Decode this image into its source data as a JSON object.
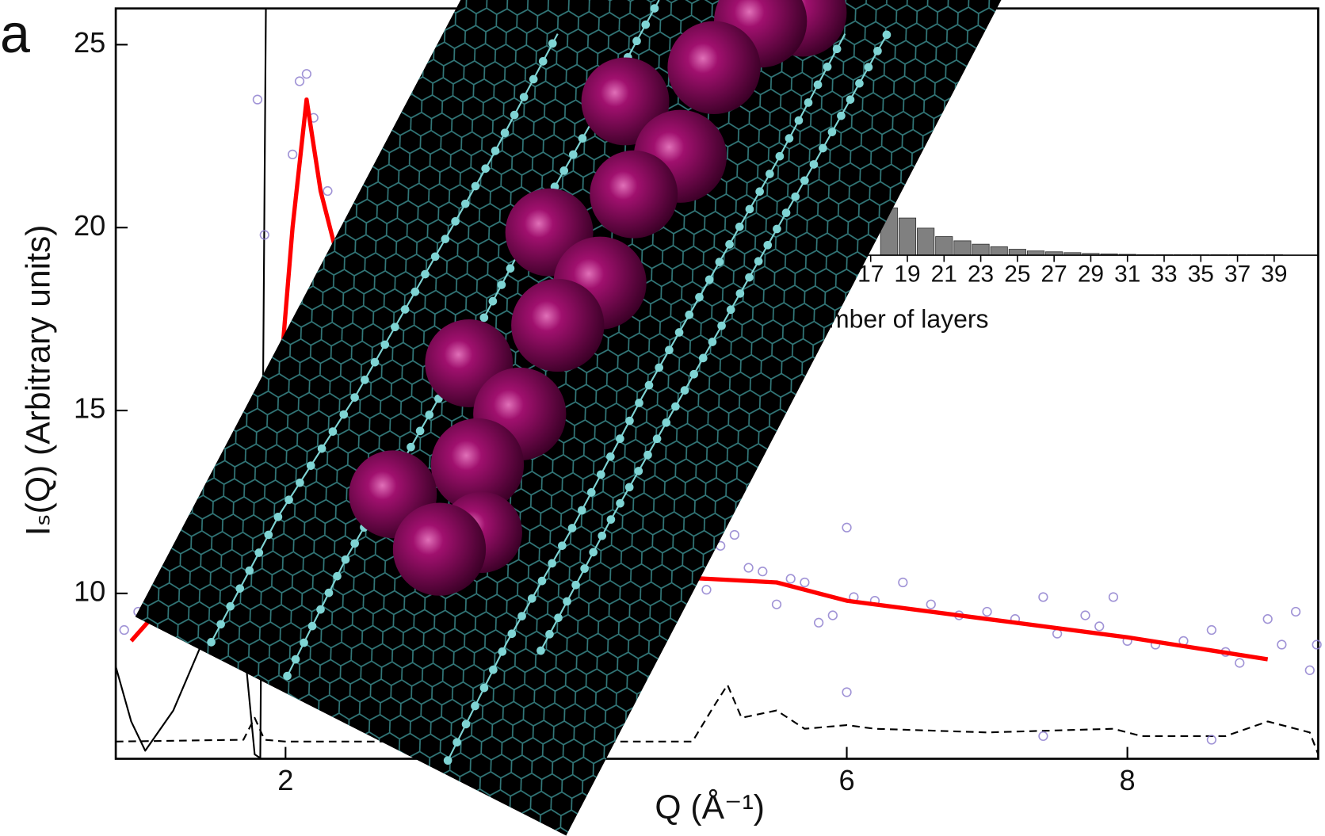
{
  "chart_data": {
    "type": "scatter",
    "panel_label": "a",
    "xlabel": "Q  (Å⁻¹)",
    "ylabel": "Iₛ(Q)  (Arbitrary units)",
    "xlim": [
      0.79,
      9.36
    ],
    "ylim": [
      5.48,
      25.99
    ],
    "xticks": [
      2,
      6,
      8
    ],
    "yticks": [
      10,
      15,
      20,
      25
    ],
    "series": [
      {
        "type": "line",
        "color": "#000000",
        "x": [
          0.79,
          0.9,
          1.0,
          1.2,
          1.5,
          1.72,
          1.78,
          1.82,
          1.86,
          1.9
        ],
        "values": [
          8.0,
          6.5,
          5.7,
          6.8,
          9.5,
          8.0,
          5.6,
          5.5,
          25.99,
          25.99
        ]
      },
      {
        "type": "line",
        "color": "#000000",
        "dash": true,
        "x": [
          0.79,
          1.7,
          1.78,
          1.85,
          2.0,
          4.9,
          5.05,
          5.15,
          5.25,
          5.5,
          5.7,
          6.0,
          6.2,
          7.0,
          7.9,
          8.1,
          8.7,
          9.0,
          9.3,
          9.36
        ],
        "values": [
          5.95,
          6.0,
          6.6,
          6.0,
          5.95,
          5.95,
          6.9,
          7.5,
          6.6,
          6.8,
          6.3,
          6.4,
          6.3,
          6.2,
          6.3,
          6.1,
          6.1,
          6.5,
          6.2,
          5.6
        ]
      },
      {
        "type": "scatter",
        "color": "#8878cc",
        "x": [
          0.85,
          0.95,
          1.05,
          1.15,
          1.8,
          1.85,
          2.05,
          2.1,
          2.15,
          2.2,
          2.3,
          5.0,
          5.1,
          5.2,
          5.3,
          5.4,
          5.5,
          5.6,
          5.7,
          5.8,
          5.9,
          6.0,
          6.05,
          6.2,
          6.4,
          6.6,
          6.8,
          7.0,
          7.2,
          7.4,
          7.5,
          7.7,
          7.8,
          7.9,
          8.0,
          8.2,
          8.4,
          8.6,
          8.7,
          8.8,
          9.0,
          9.1,
          9.2,
          9.3,
          9.35,
          6.0,
          7.4,
          8.6
        ],
        "values": [
          9.0,
          9.5,
          9.8,
          10.1,
          23.5,
          19.8,
          22.0,
          24.0,
          24.2,
          23.0,
          21.0,
          10.1,
          11.3,
          11.6,
          10.7,
          10.6,
          9.7,
          10.4,
          10.3,
          9.2,
          9.4,
          11.8,
          9.9,
          9.8,
          10.3,
          9.7,
          9.4,
          9.5,
          9.3,
          9.9,
          8.9,
          9.4,
          9.1,
          9.9,
          8.7,
          8.6,
          8.7,
          9.0,
          8.4,
          8.1,
          9.3,
          8.6,
          9.5,
          7.9,
          8.6,
          7.3,
          6.1,
          6.0
        ]
      },
      {
        "type": "line",
        "color": "#ff0000",
        "width": 5,
        "x": [
          0.9,
          1.2,
          1.6,
          1.9,
          2.05,
          2.15,
          2.25,
          2.35,
          2.5,
          3.0,
          4.0,
          5.0,
          5.5,
          5.8,
          6.0,
          7.0,
          8.0,
          9.0
        ],
        "values": [
          8.7,
          10.0,
          10.5,
          13.0,
          20.0,
          23.5,
          21.0,
          19.5,
          17.0,
          12.0,
          10.6,
          10.4,
          10.3,
          10.0,
          9.8,
          9.3,
          8.8,
          8.2
        ]
      }
    ],
    "inset": {
      "type": "bar",
      "xlabel": "mber of layers",
      "color": "#808080",
      "xlim": [
        15.6,
        41.4
      ],
      "ylim": [
        0,
        100
      ],
      "xticks": [
        17,
        19,
        21,
        23,
        25,
        27,
        29,
        31,
        33,
        35,
        37,
        39
      ],
      "x": [
        18,
        19,
        20,
        21,
        22,
        23,
        24,
        25,
        26,
        27,
        28,
        29,
        30,
        31,
        32,
        33,
        34,
        35,
        36,
        37,
        38,
        39
      ],
      "values": [
        56,
        44,
        32,
        22,
        17,
        13,
        10,
        7,
        5,
        4,
        3,
        2,
        1.5,
        1,
        0.5,
        0.5,
        0.5,
        0.5,
        0.5,
        0.5,
        0.5,
        0.5
      ]
    }
  }
}
